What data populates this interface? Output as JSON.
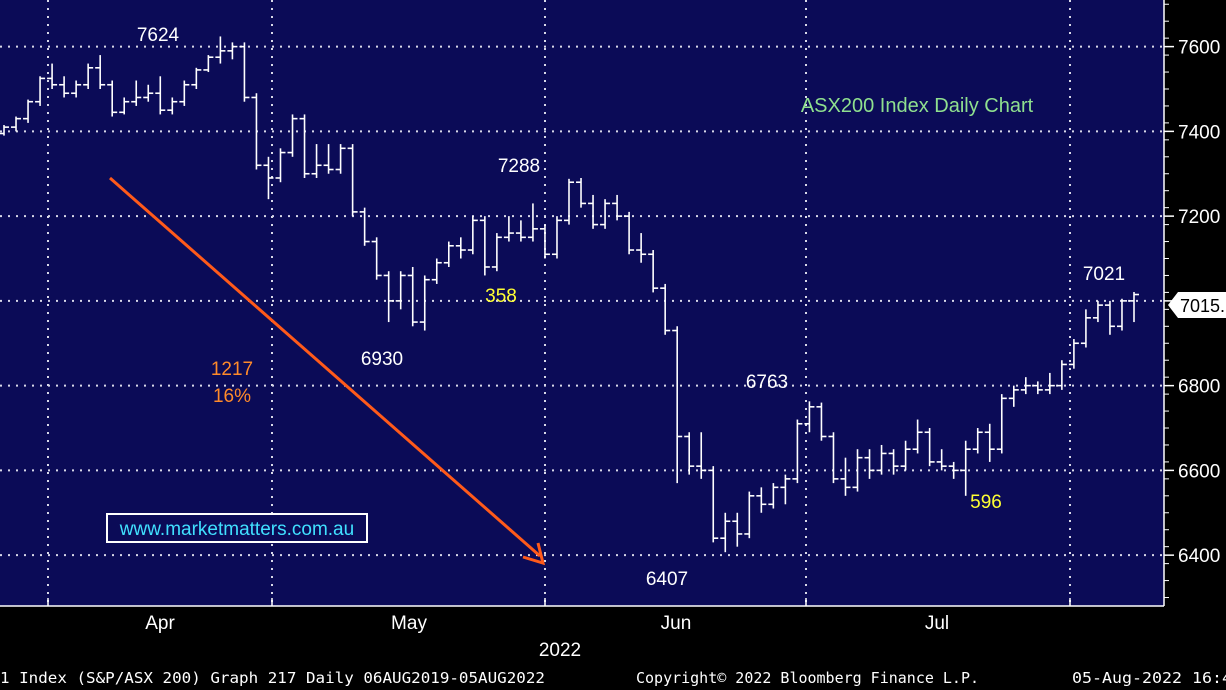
{
  "chart_data": {
    "type": "ohlc",
    "title": "ASX200 Index Daily Chart",
    "ylim": [
      6280,
      7710
    ],
    "y_ticks": [
      6400,
      6600,
      6800,
      7000,
      7200,
      7400,
      7600
    ],
    "y_tick_labels": [
      "6400",
      "6600",
      "6800",
      "7000",
      "7200",
      "7400",
      "7600"
    ],
    "month_labels": [
      "Apr",
      "May",
      "Jun",
      "Jul"
    ],
    "year_label": "2022",
    "last_price_label": "7015.",
    "annotations": {
      "high_7624": "7624",
      "low_6930": "6930",
      "high_7288": "7288",
      "low_6407": "6407",
      "high_6763": "6763",
      "high_7021": "7021",
      "drop_points": "1217",
      "drop_pct": "16%",
      "bounce_358": "358",
      "rally_596": "596"
    },
    "watermark": "www.marketmatters.com.au",
    "bars": [
      [
        7395,
        7415,
        7390,
        7410
      ],
      [
        7410,
        7435,
        7400,
        7430
      ],
      [
        7430,
        7475,
        7420,
        7470
      ],
      [
        7470,
        7530,
        7460,
        7525
      ],
      [
        7525,
        7560,
        7500,
        7510
      ],
      [
        7510,
        7530,
        7480,
        7490
      ],
      [
        7490,
        7520,
        7480,
        7510
      ],
      [
        7510,
        7560,
        7500,
        7550
      ],
      [
        7550,
        7580,
        7500,
        7510
      ],
      [
        7510,
        7520,
        7435,
        7445
      ],
      [
        7445,
        7480,
        7440,
        7470
      ],
      [
        7470,
        7520,
        7460,
        7480
      ],
      [
        7480,
        7510,
        7470,
        7490
      ],
      [
        7490,
        7530,
        7440,
        7450
      ],
      [
        7450,
        7480,
        7440,
        7470
      ],
      [
        7470,
        7520,
        7460,
        7510
      ],
      [
        7510,
        7550,
        7500,
        7545
      ],
      [
        7545,
        7580,
        7540,
        7575
      ],
      [
        7575,
        7624,
        7560,
        7590
      ],
      [
        7590,
        7610,
        7570,
        7600
      ],
      [
        7600,
        7610,
        7470,
        7480
      ],
      [
        7480,
        7490,
        7310,
        7320
      ],
      [
        7320,
        7340,
        7240,
        7290
      ],
      [
        7290,
        7360,
        7280,
        7350
      ],
      [
        7350,
        7440,
        7340,
        7430
      ],
      [
        7430,
        7440,
        7290,
        7300
      ],
      [
        7300,
        7370,
        7290,
        7320
      ],
      [
        7320,
        7370,
        7300,
        7310
      ],
      [
        7310,
        7370,
        7300,
        7360
      ],
      [
        7360,
        7370,
        7200,
        7210
      ],
      [
        7210,
        7220,
        7130,
        7140
      ],
      [
        7140,
        7150,
        7050,
        7060
      ],
      [
        7060,
        7070,
        6950,
        7000
      ],
      [
        7000,
        7070,
        6980,
        7060
      ],
      [
        7060,
        7080,
        6940,
        6950
      ],
      [
        6950,
        7060,
        6930,
        7050
      ],
      [
        7050,
        7100,
        7040,
        7090
      ],
      [
        7090,
        7140,
        7080,
        7130
      ],
      [
        7130,
        7150,
        7100,
        7120
      ],
      [
        7120,
        7200,
        7110,
        7190
      ],
      [
        7190,
        7200,
        7060,
        7080
      ],
      [
        7080,
        7160,
        7070,
        7150
      ],
      [
        7150,
        7200,
        7140,
        7160
      ],
      [
        7160,
        7190,
        7140,
        7150
      ],
      [
        7150,
        7230,
        7140,
        7170
      ],
      [
        7170,
        7180,
        7100,
        7110
      ],
      [
        7110,
        7200,
        7100,
        7190
      ],
      [
        7190,
        7288,
        7180,
        7280
      ],
      [
        7280,
        7290,
        7220,
        7230
      ],
      [
        7230,
        7250,
        7170,
        7180
      ],
      [
        7180,
        7240,
        7170,
        7230
      ],
      [
        7230,
        7250,
        7190,
        7200
      ],
      [
        7200,
        7210,
        7110,
        7120
      ],
      [
        7120,
        7160,
        7090,
        7110
      ],
      [
        7110,
        7120,
        7020,
        7030
      ],
      [
        7030,
        7040,
        6920,
        6930
      ],
      [
        6930,
        6940,
        6570,
        6680
      ],
      [
        6680,
        6690,
        6590,
        6610
      ],
      [
        6610,
        6690,
        6580,
        6600
      ],
      [
        6600,
        6610,
        6430,
        6440
      ],
      [
        6440,
        6500,
        6407,
        6480
      ],
      [
        6480,
        6500,
        6420,
        6450
      ],
      [
        6450,
        6550,
        6440,
        6540
      ],
      [
        6540,
        6560,
        6500,
        6520
      ],
      [
        6520,
        6570,
        6510,
        6560
      ],
      [
        6560,
        6590,
        6520,
        6580
      ],
      [
        6580,
        6720,
        6570,
        6710
      ],
      [
        6710,
        6763,
        6690,
        6750
      ],
      [
        6750,
        6760,
        6670,
        6680
      ],
      [
        6680,
        6690,
        6570,
        6580
      ],
      [
        6580,
        6630,
        6540,
        6560
      ],
      [
        6560,
        6650,
        6550,
        6630
      ],
      [
        6630,
        6650,
        6580,
        6600
      ],
      [
        6600,
        6660,
        6590,
        6640
      ],
      [
        6640,
        6650,
        6590,
        6610
      ],
      [
        6610,
        6670,
        6600,
        6650
      ],
      [
        6650,
        6720,
        6640,
        6690
      ],
      [
        6690,
        6700,
        6610,
        6620
      ],
      [
        6620,
        6650,
        6600,
        6610
      ],
      [
        6610,
        6620,
        6580,
        6600
      ],
      [
        6600,
        6670,
        6540,
        6650
      ],
      [
        6650,
        6700,
        6640,
        6690
      ],
      [
        6690,
        6710,
        6620,
        6650
      ],
      [
        6650,
        6780,
        6640,
        6770
      ],
      [
        6770,
        6800,
        6750,
        6790
      ],
      [
        6790,
        6820,
        6780,
        6800
      ],
      [
        6800,
        6810,
        6780,
        6790
      ],
      [
        6790,
        6830,
        6780,
        6800
      ],
      [
        6800,
        6860,
        6790,
        6850
      ],
      [
        6850,
        6910,
        6840,
        6900
      ],
      [
        6900,
        6980,
        6890,
        6960
      ],
      [
        6960,
        7000,
        6950,
        6990
      ],
      [
        6990,
        7000,
        6920,
        6940
      ],
      [
        6940,
        7005,
        6930,
        7000
      ],
      [
        7000,
        7021,
        6950,
        7015
      ]
    ]
  }
}
